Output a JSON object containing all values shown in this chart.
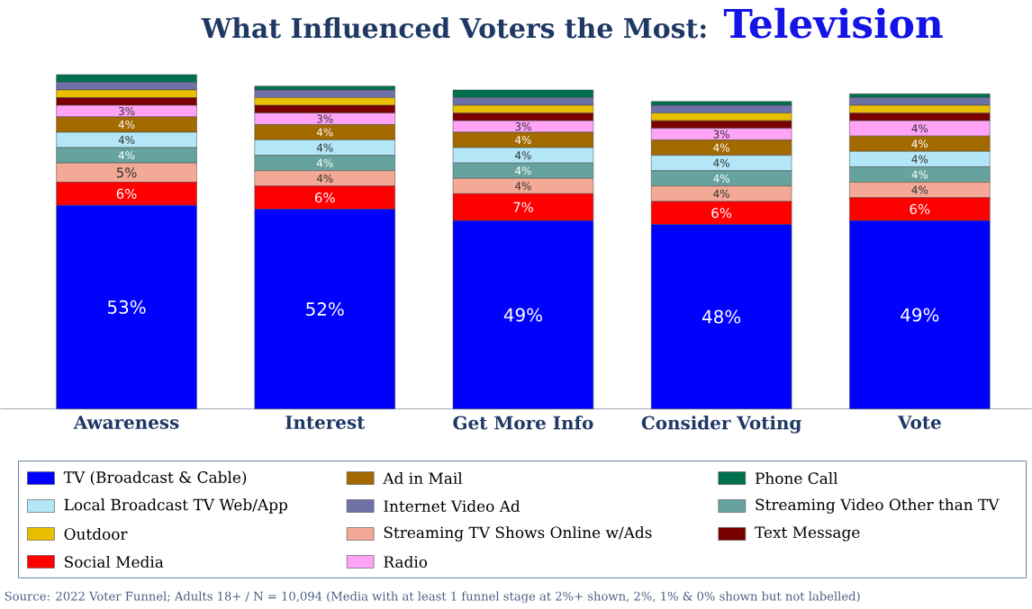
{
  "chart_data": {
    "type": "bar",
    "stacked": true,
    "title": "What Influenced Voters the Most:",
    "subtitle": "Television",
    "categories": [
      "Awareness",
      "Interest",
      "Get More Info",
      "Consider Voting",
      "Vote"
    ],
    "series": [
      {
        "name": "TV (Broadcast & Cable)",
        "color": "#0000ff",
        "values": [
          53,
          52,
          49,
          48,
          49
        ],
        "value_labels": [
          "53%",
          "52%",
          "49%",
          "48%",
          "49%"
        ]
      },
      {
        "name": "Social Media",
        "color": "#ff0000",
        "values": [
          6,
          6,
          7,
          6,
          6
        ],
        "value_labels": [
          "6%",
          "6%",
          "7%",
          "6%",
          "6%"
        ]
      },
      {
        "name": "Streaming TV Shows Online w/Ads",
        "color": "#f4a996",
        "values": [
          5,
          4,
          4,
          4,
          4
        ],
        "value_labels": [
          "5%",
          "4%",
          "4%",
          "4%",
          "4%"
        ]
      },
      {
        "name": "Streaming Video Other than TV",
        "color": "#66a39e",
        "values": [
          4,
          4,
          4,
          4,
          4
        ],
        "value_labels": [
          "4%",
          "4%",
          "4%",
          "4%",
          "4%"
        ]
      },
      {
        "name": "Local Broadcast TV Web/App",
        "color": "#b3e6f7",
        "values": [
          4,
          4,
          4,
          4,
          4
        ],
        "value_labels": [
          "4%",
          "4%",
          "4%",
          "4%",
          "4%"
        ]
      },
      {
        "name": "Ad in Mail",
        "color": "#a36a00",
        "values": [
          4,
          4,
          4,
          4,
          4
        ],
        "value_labels": [
          "4%",
          "4%",
          "4%",
          "4%",
          "4%"
        ]
      },
      {
        "name": "Radio",
        "color": "#ffa3f7",
        "values": [
          3,
          3,
          3,
          3,
          4
        ],
        "value_labels": [
          "3%",
          "3%",
          "3%",
          "3%",
          "4%"
        ]
      },
      {
        "name": "Text Message",
        "color": "#7a0000",
        "values": [
          2,
          2,
          2,
          2,
          2
        ]
      },
      {
        "name": "Outdoor",
        "color": "#e8c000",
        "values": [
          2,
          2,
          2,
          2,
          2
        ]
      },
      {
        "name": "Internet Video Ad",
        "color": "#7070a8",
        "values": [
          2,
          2,
          2,
          2,
          2
        ]
      },
      {
        "name": "Phone Call",
        "color": "#00704f",
        "values": [
          2,
          1,
          2,
          1,
          1
        ]
      }
    ],
    "legend": "bottom",
    "annotations": [
      "Source: 2022 Voter Funnel; Adults 18+ / N = 10,094 (Media with at least 1 funnel stage at 2%+ shown, 2%, 1% & 0% shown but not labelled)"
    ]
  }
}
